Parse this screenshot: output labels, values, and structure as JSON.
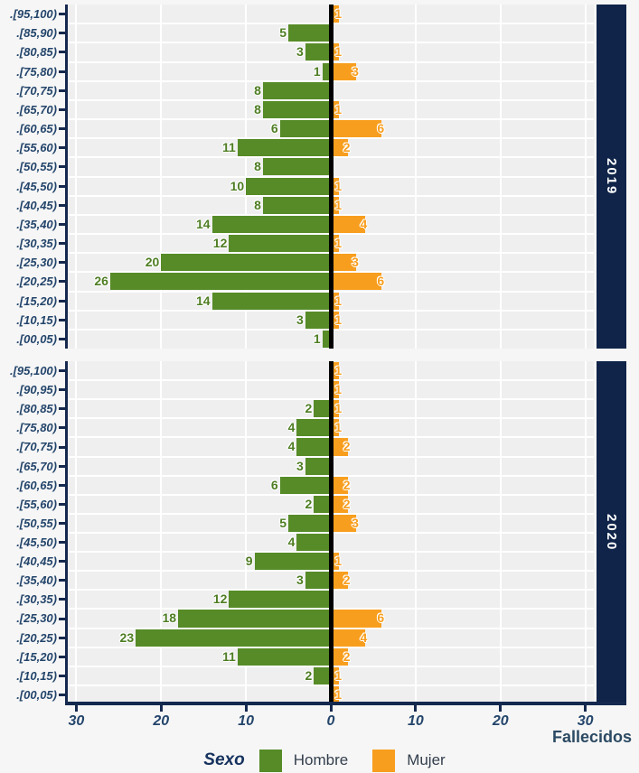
{
  "chart_data": {
    "type": "bar",
    "subtype": "population-pyramid-faceted",
    "xlabel": "Fallecidos",
    "legend_title": "Sexo",
    "legend_position": "bottom",
    "series_names": [
      "Hombre",
      "Mujer"
    ],
    "x_tick_labels": [
      "30",
      "20",
      "10",
      "0",
      "10",
      "20",
      "30"
    ],
    "x_tick_values": [
      -30,
      -20,
      -10,
      0,
      10,
      20,
      30
    ],
    "xlim": [
      -31,
      31
    ],
    "grid": true,
    "facets": [
      {
        "label": "2019",
        "categories": [
          ".[95,100)",
          ".[85,90)",
          ".[80,85)",
          ".[75,80)",
          ".[70,75)",
          ".[65,70)",
          ".[60,65)",
          ".[55,60)",
          ".[50,55)",
          ".[45,50)",
          ".[40,45)",
          ".[35,40)",
          ".[30,35)",
          ".[25,30)",
          ".[20,25)",
          ".[15,20)",
          ".[10,15)",
          ".[00,05)"
        ],
        "series": [
          {
            "name": "Hombre",
            "values": [
              0,
              5,
              3,
              1,
              8,
              8,
              6,
              11,
              8,
              10,
              8,
              14,
              12,
              20,
              26,
              14,
              3,
              1
            ]
          },
          {
            "name": "Mujer",
            "values": [
              1,
              0,
              1,
              3,
              0,
              1,
              6,
              2,
              0,
              1,
              1,
              4,
              1,
              3,
              6,
              1,
              1,
              0
            ]
          }
        ]
      },
      {
        "label": "2020",
        "categories": [
          ".[95,100)",
          ".[90,95)",
          ".[80,85)",
          ".[75,80)",
          ".[70,75)",
          ".[65,70)",
          ".[60,65)",
          ".[55,60)",
          ".[50,55)",
          ".[45,50)",
          ".[40,45)",
          ".[35,40)",
          ".[30,35)",
          ".[25,30)",
          ".[20,25)",
          ".[15,20)",
          ".[10,15)",
          ".[00,05)"
        ],
        "series": [
          {
            "name": "Hombre",
            "values": [
              0,
              0,
              2,
              4,
              4,
              3,
              6,
              2,
              5,
              4,
              9,
              3,
              12,
              18,
              23,
              11,
              2,
              0
            ]
          },
          {
            "name": "Mujer",
            "values": [
              1,
              1,
              1,
              1,
              2,
              0,
              2,
              2,
              3,
              0,
              1,
              2,
              0,
              6,
              4,
              2,
              1,
              1
            ]
          }
        ]
      }
    ],
    "colors": {
      "hombre": "#568b27",
      "mujer": "#f89e1e",
      "hombre_label": "#4e7d23",
      "mujer_label": "#f89e1e",
      "facet_strip_bg": "#0f2448",
      "facet_strip_text": "#ffffff",
      "axis_text": "#24456b",
      "xlabel_text": "#2c4a63",
      "legend_title_text": "#16325e",
      "legend_label_text": "#333f4d",
      "panel_bg": "#efefef",
      "gridline": "#ffffff",
      "zero_line": "#000000",
      "axis_line": "#15294e",
      "page_bg": "#f6f6f6"
    }
  }
}
